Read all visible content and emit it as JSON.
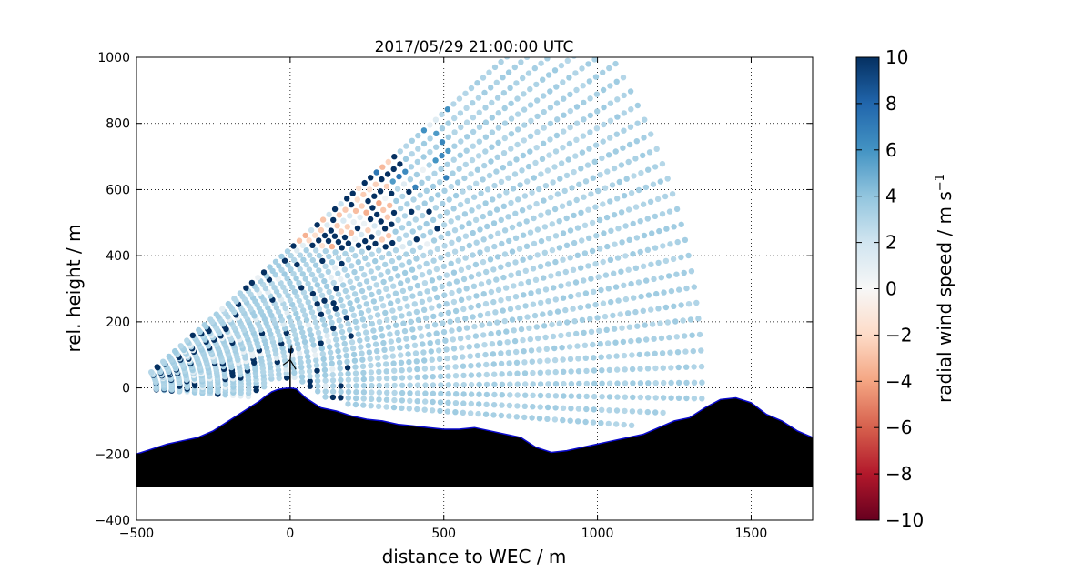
{
  "chart_data": {
    "type": "scatter",
    "title": "2017/05/29 21:00:00 UTC",
    "xlabel": "distance to WEC / m",
    "ylabel": "rel. height / m",
    "xlim": [
      -500,
      1700
    ],
    "ylim": [
      -400,
      1000
    ],
    "xticks": [
      "−500",
      "0",
      "500",
      "1000",
      "1500"
    ],
    "yticks": [
      "−400",
      "−200",
      "0",
      "200",
      "400",
      "600",
      "800",
      "1000"
    ],
    "grid": true,
    "colorbar": {
      "label": "radial wind speed / m s",
      "label_sup": "−1",
      "min": -10,
      "max": 10,
      "ticks": [
        "−10",
        "−8",
        "−6",
        "−4",
        "−2",
        "0",
        "2",
        "4",
        "6",
        "8",
        "10"
      ],
      "colormap": "RdBu",
      "stops": [
        "#67001f",
        "#b2182b",
        "#d6604d",
        "#f4a582",
        "#fddbc7",
        "#f7f7f7",
        "#d1e5f0",
        "#92c5de",
        "#4393c3",
        "#2166ac",
        "#053061"
      ]
    },
    "scan": {
      "origin": [
        -510,
        0
      ],
      "range_start": 75,
      "range_end": 1860,
      "range_step": 25,
      "elevation_min_deg": -4,
      "elevation_max_deg": 40,
      "elevation_step_deg": 1.5,
      "far_field_radial_speed": 3.2
    },
    "terrain": {
      "x": [
        -500,
        -450,
        -400,
        -350,
        -300,
        -250,
        -200,
        -150,
        -100,
        -80,
        -60,
        -40,
        -20,
        0,
        20,
        50,
        100,
        150,
        200,
        250,
        300,
        350,
        400,
        450,
        500,
        550,
        600,
        650,
        700,
        750,
        800,
        850,
        900,
        950,
        1000,
        1050,
        1100,
        1150,
        1200,
        1250,
        1300,
        1350,
        1400,
        1450,
        1500,
        1550,
        1600,
        1650,
        1700
      ],
      "y": [
        -200,
        -185,
        -170,
        -160,
        -150,
        -130,
        -100,
        -70,
        -40,
        -25,
        -12,
        -5,
        -2,
        0,
        -3,
        -30,
        -60,
        -70,
        -85,
        -95,
        -100,
        -110,
        -115,
        -120,
        -125,
        -125,
        -120,
        -130,
        -140,
        -150,
        -180,
        -195,
        -190,
        -180,
        -170,
        -160,
        -150,
        -140,
        -120,
        -100,
        -90,
        -60,
        -35,
        -30,
        -45,
        -80,
        -100,
        -130,
        -150
      ],
      "base": -300,
      "outline_color": "#0a0acd"
    },
    "turbine": {
      "x": 0,
      "hub_height": 85,
      "rotor_radius": 45
    }
  }
}
